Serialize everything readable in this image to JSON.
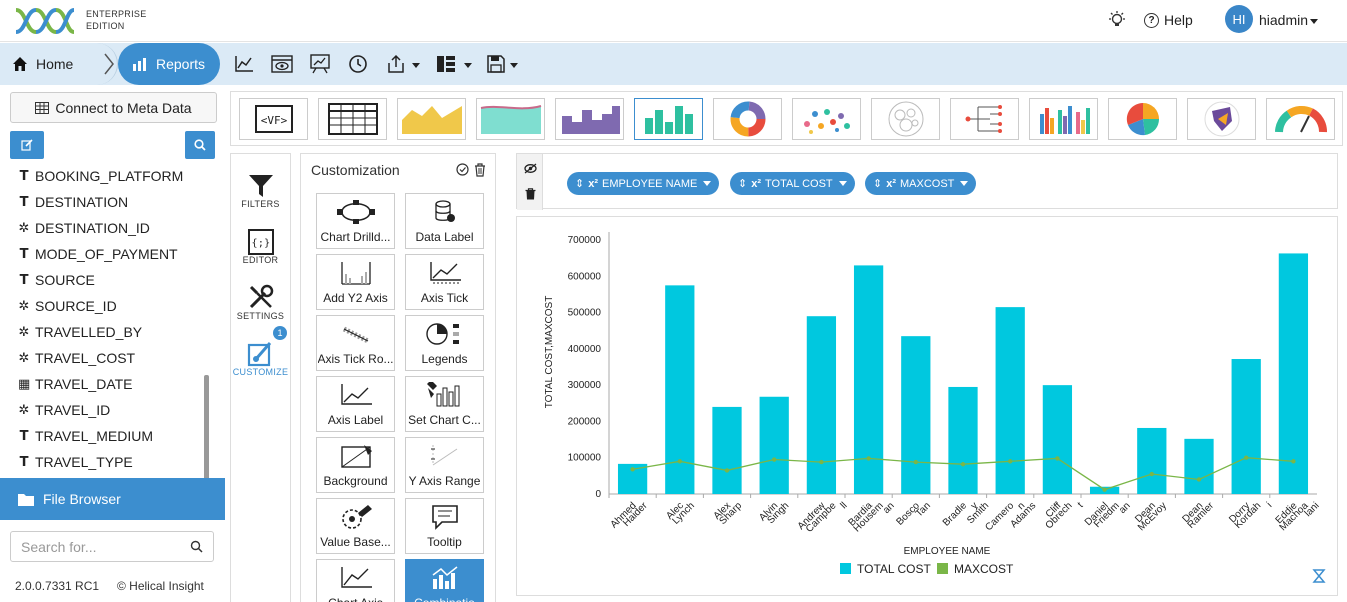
{
  "header": {
    "edition_line1": "ENTERPRISE",
    "edition_line2": "EDITION",
    "help_label": "Help",
    "avatar_initials": "HI",
    "username": "hiadmin"
  },
  "toolbar": {
    "home_label": "Home",
    "reports_label": "Reports",
    "icons": [
      "line-chart-icon",
      "preview-icon",
      "presentation-icon",
      "history-icon",
      "export-icon",
      "layout-icon",
      "save-icon"
    ]
  },
  "left_panel": {
    "connect_label": "Connect to Meta Data",
    "fields": [
      {
        "type": "text",
        "name": "BOOKING_PLATFORM"
      },
      {
        "type": "text",
        "name": "DESTINATION"
      },
      {
        "type": "numeric",
        "name": "DESTINATION_ID"
      },
      {
        "type": "text",
        "name": "MODE_OF_PAYMENT"
      },
      {
        "type": "text",
        "name": "SOURCE"
      },
      {
        "type": "numeric",
        "name": "SOURCE_ID"
      },
      {
        "type": "numeric",
        "name": "TRAVELLED_BY"
      },
      {
        "type": "numeric",
        "name": "TRAVEL_COST"
      },
      {
        "type": "date",
        "name": "TRAVEL_DATE"
      },
      {
        "type": "numeric",
        "name": "TRAVEL_ID"
      },
      {
        "type": "text",
        "name": "TRAVEL_MEDIUM"
      },
      {
        "type": "text",
        "name": "TRAVEL_TYPE"
      }
    ],
    "file_browser_label": "File Browser",
    "search_placeholder": "Search for...",
    "version": "2.0.0.7331 RC1",
    "copyright": "© Helical Insight"
  },
  "vnav": {
    "filters": "FILTERS",
    "editor": "EDITOR",
    "settings": "SETTINGS",
    "customize": "CUSTOMIZE",
    "badge": "1"
  },
  "customization": {
    "title": "Customization",
    "tiles": [
      "Chart Drilld...",
      "Data Label",
      "Add Y2 Axis",
      "Axis Tick",
      "Axis Tick Ro...",
      "Legends",
      "Axis Label",
      "Set Chart C...",
      "Background",
      "Y Axis Range",
      "Value Base...",
      "Tooltip",
      "Chart Axis",
      "Combinatio"
    ]
  },
  "dropzone": {
    "chips": [
      "EMPLOYEE NAME",
      "TOTAL COST",
      "MAXCOST"
    ],
    "chip_prefix": "x²"
  },
  "colors": {
    "accent": "#3c8ecf",
    "bar": "#00c8df",
    "line": "#7ab648"
  },
  "chart_data": {
    "type": "bar",
    "categories": [
      [
        "Ahmed",
        "Haider"
      ],
      [
        "Alec",
        "Lynch"
      ],
      [
        "Alex",
        "Sharp"
      ],
      [
        "Alvin",
        "Singh"
      ],
      [
        "Andrew",
        "Campbe",
        "ll"
      ],
      [
        "Bardia",
        "Housem",
        "an"
      ],
      [
        "Bosco",
        "Tan"
      ],
      [
        "Bradle",
        "y",
        "Smith"
      ],
      [
        "Camero",
        "n",
        "Adams"
      ],
      [
        "Cliff",
        "Obrech",
        "t"
      ],
      [
        "Daniel",
        "Friedm",
        "an"
      ],
      [
        "Dean",
        "McEvoy"
      ],
      [
        "Dean",
        "Ramler"
      ],
      [
        "Dorry",
        "Kordah",
        "i"
      ],
      [
        "Eddie",
        "Machoa",
        "lani"
      ]
    ],
    "series": [
      {
        "name": "TOTAL COST",
        "kind": "bar",
        "values": [
          83000,
          575000,
          240000,
          268000,
          490000,
          630000,
          435000,
          295000,
          515000,
          300000,
          20000,
          182000,
          152000,
          372000,
          663000
        ]
      },
      {
        "name": "MAXCOST",
        "kind": "line",
        "values": [
          68000,
          90000,
          65000,
          95000,
          88000,
          98000,
          88000,
          82000,
          90000,
          98000,
          12000,
          55000,
          40000,
          100000,
          90000
        ]
      }
    ],
    "xlabel": "EMPLOYEE NAME",
    "ylabel": "TOTAL COST,MAXCOST",
    "ylim": [
      0,
      700000
    ],
    "yticks": [
      0,
      100000,
      200000,
      300000,
      400000,
      500000,
      600000,
      700000
    ],
    "legend": "bottom-center"
  }
}
